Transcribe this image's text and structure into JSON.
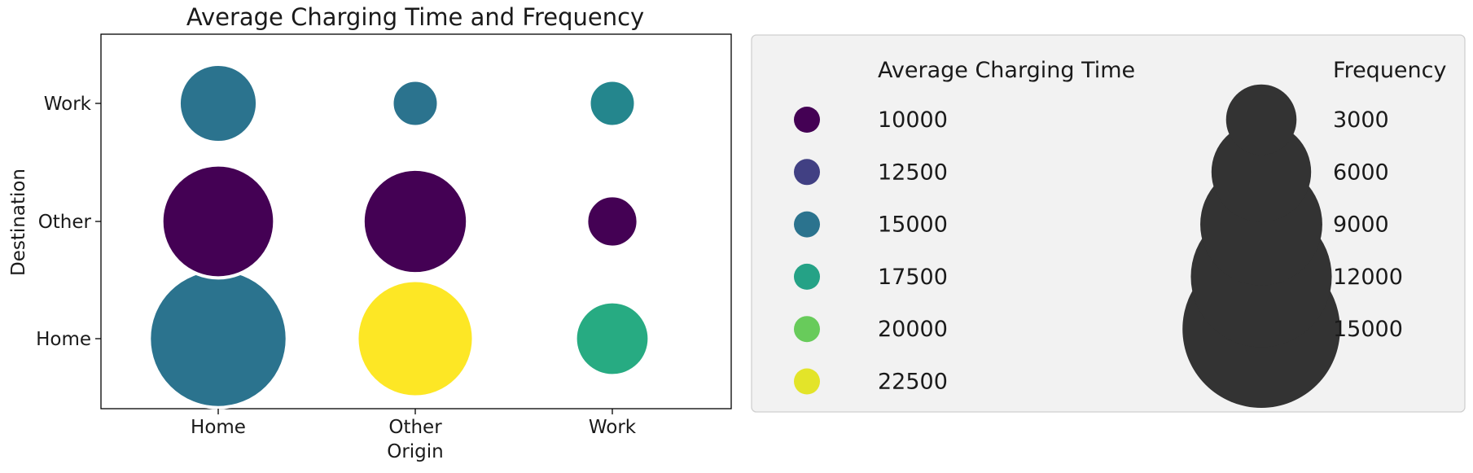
{
  "chart_data": {
    "type": "scatter",
    "title": "Average Charging Time and Frequency",
    "xlabel": "Origin",
    "ylabel": "Destination",
    "categories_x": [
      "Home",
      "Other",
      "Work"
    ],
    "categories_y": [
      "Home",
      "Other",
      "Work"
    ],
    "color_scale": "viridis",
    "points": [
      {
        "origin": "Home",
        "destination": "Work",
        "charging_time": 15000,
        "frequency": 3700
      },
      {
        "origin": "Other",
        "destination": "Work",
        "charging_time": 15000,
        "frequency": 1300
      },
      {
        "origin": "Work",
        "destination": "Work",
        "charging_time": 16000,
        "frequency": 1300
      },
      {
        "origin": "Home",
        "destination": "Other",
        "charging_time": 10000,
        "frequency": 7700
      },
      {
        "origin": "Other",
        "destination": "Other",
        "charging_time": 10000,
        "frequency": 6600
      },
      {
        "origin": "Work",
        "destination": "Other",
        "charging_time": 10000,
        "frequency": 1600
      },
      {
        "origin": "Home",
        "destination": "Home",
        "charging_time": 15000,
        "frequency": 11500
      },
      {
        "origin": "Other",
        "destination": "Home",
        "charging_time": 23000,
        "frequency": 8200
      },
      {
        "origin": "Work",
        "destination": "Home",
        "charging_time": 18000,
        "frequency": 3300
      }
    ],
    "legend": {
      "placement": "right",
      "color_title": "Average Charging Time",
      "color_entries": [
        {
          "label": "10000",
          "value": 10000
        },
        {
          "label": "12500",
          "value": 12500
        },
        {
          "label": "15000",
          "value": 15000
        },
        {
          "label": "17500",
          "value": 17500
        },
        {
          "label": "20000",
          "value": 20000
        },
        {
          "label": "22500",
          "value": 22500
        }
      ],
      "size_title": "Frequency",
      "size_entries": [
        {
          "label": "3000",
          "value": 3000
        },
        {
          "label": "6000",
          "value": 6000
        },
        {
          "label": "9000",
          "value": 9000
        },
        {
          "label": "12000",
          "value": 12000
        },
        {
          "label": "15000",
          "value": 15000
        }
      ],
      "size_marker_color": "#333333"
    },
    "grid": false
  }
}
